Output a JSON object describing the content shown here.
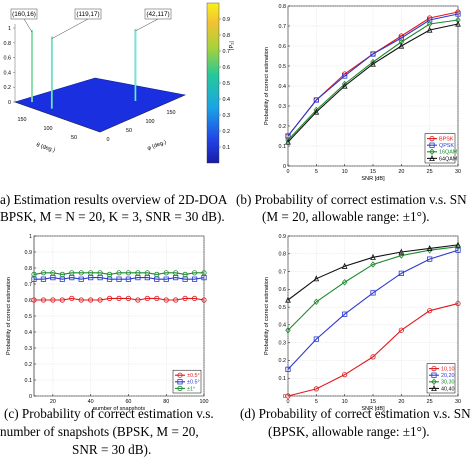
{
  "captions": {
    "a": [
      "a) Estimation results overview of 2D-DOA",
      "BPSK, M = N = 20, K = 3, SNR = 30 dB)."
    ],
    "b": [
      "(b) Probability of correct estimation v.s. SN",
      "(M = 20, allowable range: ±1°)."
    ],
    "c": [
      "(c) Probability of correct estimation v.s.",
      "number of snapshots (BPSK, M = 20,",
      "SNR = 30 dB)."
    ],
    "d": [
      "(d) Probability of correct estimation v.s. SN",
      "(BPSK, allowable range: ±1°)."
    ]
  },
  "colors": {
    "red": "#e0191e",
    "blue": "#2a3ad0",
    "green": "#1c8a2d",
    "black": "#111111",
    "surface": "#1a2fe0",
    "spike": "#4fd8c8"
  },
  "chart_data": [
    {
      "id": "a",
      "type": "surface",
      "ztick_labels": [
        "0",
        "0.2",
        "0.4",
        "0.6",
        "0.8",
        "1"
      ],
      "theta_label": "θ (deg.)",
      "phi_label": "φ (deg.)",
      "theta_ticks": [
        "150",
        "100",
        "50"
      ],
      "phi_ticks": [
        "0",
        "50",
        "100",
        "150"
      ],
      "peaks": [
        {
          "label": "(160,16)",
          "theta": 160,
          "phi": 16,
          "z": 1
        },
        {
          "label": "(119,17)",
          "theta": 119,
          "phi": 17,
          "z": 1
        },
        {
          "label": "(42,117)",
          "theta": 42,
          "phi": 117,
          "z": 1
        }
      ],
      "colorbar_label": "|P₂|",
      "colorbar_ticks": [
        "0.9",
        "0.8",
        "0.7",
        "0.6",
        "0.5",
        "0.4",
        "0.3",
        "0.2",
        "0.1"
      ]
    },
    {
      "id": "b",
      "type": "line",
      "xlabel": "SNR [dB]",
      "ylabel": "Probability of correct estimation",
      "x": [
        0,
        5,
        10,
        15,
        20,
        25,
        30
      ],
      "xlim": [
        0,
        30
      ],
      "ylim": [
        0,
        0.8
      ],
      "xticks": [
        "0",
        "5",
        "10",
        "15",
        "20",
        "25",
        "30"
      ],
      "yticks": [
        "0",
        "0.1",
        "0.2",
        "0.3",
        "0.4",
        "0.5",
        "0.6",
        "0.7",
        "0.8"
      ],
      "legend_position": "bottom-right",
      "series": [
        {
          "name": "BPSK",
          "color": "#e0191e",
          "marker": "circle",
          "values": [
            0.15,
            0.33,
            0.46,
            0.56,
            0.65,
            0.74,
            0.77
          ]
        },
        {
          "name": "QPSK",
          "color": "#2a3ad0",
          "marker": "square",
          "values": [
            0.15,
            0.33,
            0.45,
            0.56,
            0.64,
            0.73,
            0.76
          ]
        },
        {
          "name": "16QAM",
          "color": "#1c8a2d",
          "marker": "diamond",
          "values": [
            0.13,
            0.28,
            0.41,
            0.52,
            0.62,
            0.71,
            0.73
          ]
        },
        {
          "name": "64QAM",
          "color": "#111111",
          "marker": "triangle",
          "values": [
            0.12,
            0.27,
            0.4,
            0.51,
            0.6,
            0.68,
            0.71
          ]
        }
      ]
    },
    {
      "id": "c",
      "type": "line",
      "xlabel": "number of snapshots",
      "ylabel": "Probability of correct estimation",
      "x": [
        10,
        15,
        20,
        25,
        30,
        35,
        40,
        45,
        50,
        55,
        60,
        65,
        70,
        75,
        80,
        85,
        90,
        95,
        100
      ],
      "xlim": [
        10,
        100
      ],
      "ylim": [
        0,
        1
      ],
      "xticks": [
        "20",
        "40",
        "60",
        "80",
        "100"
      ],
      "xtick_values": [
        20,
        40,
        60,
        80,
        100
      ],
      "yticks": [
        "0",
        "0.1",
        "0.2",
        "0.3",
        "0.4",
        "0.5",
        "0.6",
        "0.7",
        "0.8",
        "0.9",
        "1"
      ],
      "legend_position": "bottom-right",
      "series": [
        {
          "name": "±0.5°",
          "color": "#e0191e",
          "marker": "circle",
          "values": [
            0.6,
            0.6,
            0.6,
            0.6,
            0.61,
            0.6,
            0.6,
            0.6,
            0.61,
            0.61,
            0.61,
            0.6,
            0.61,
            0.61,
            0.6,
            0.6,
            0.61,
            0.61,
            0.6
          ]
        },
        {
          "name": "±0.5°",
          "color": "#2a3ad0",
          "marker": "square",
          "values": [
            0.73,
            0.73,
            0.74,
            0.73,
            0.74,
            0.73,
            0.74,
            0.74,
            0.73,
            0.73,
            0.73,
            0.74,
            0.74,
            0.73,
            0.73,
            0.74,
            0.73,
            0.73,
            0.74
          ]
        },
        {
          "name": "±1°",
          "color": "#1c8a2d",
          "marker": "circle",
          "values": [
            0.76,
            0.77,
            0.77,
            0.76,
            0.77,
            0.77,
            0.77,
            0.77,
            0.76,
            0.77,
            0.77,
            0.77,
            0.77,
            0.76,
            0.77,
            0.77,
            0.76,
            0.77,
            0.77
          ]
        }
      ]
    },
    {
      "id": "d",
      "type": "line",
      "xlabel": "SNR [dB]",
      "ylabel": "Probability of correct estimation",
      "x": [
        0,
        5,
        10,
        15,
        20,
        25,
        30
      ],
      "xlim": [
        0,
        30
      ],
      "ylim": [
        0,
        0.9
      ],
      "xticks": [
        "0",
        "5",
        "10",
        "15",
        "20",
        "25",
        "30"
      ],
      "yticks": [
        "0",
        "0.1",
        "0.2",
        "0.3",
        "0.4",
        "0.5",
        "0.6",
        "0.7",
        "0.8",
        "0.9"
      ],
      "legend_position": "bottom-right",
      "series": [
        {
          "name": "10,10",
          "color": "#e0191e",
          "marker": "circle",
          "values": [
            0.0,
            0.04,
            0.12,
            0.22,
            0.37,
            0.48,
            0.52
          ]
        },
        {
          "name": "20,20",
          "color": "#2a3ad0",
          "marker": "square",
          "values": [
            0.15,
            0.32,
            0.46,
            0.58,
            0.69,
            0.77,
            0.82
          ]
        },
        {
          "name": "30,30",
          "color": "#1c8a2d",
          "marker": "diamond",
          "values": [
            0.37,
            0.53,
            0.64,
            0.74,
            0.79,
            0.82,
            0.84
          ]
        },
        {
          "name": "40,40",
          "color": "#111111",
          "marker": "triangle",
          "values": [
            0.54,
            0.66,
            0.73,
            0.78,
            0.81,
            0.83,
            0.85
          ]
        }
      ]
    }
  ]
}
